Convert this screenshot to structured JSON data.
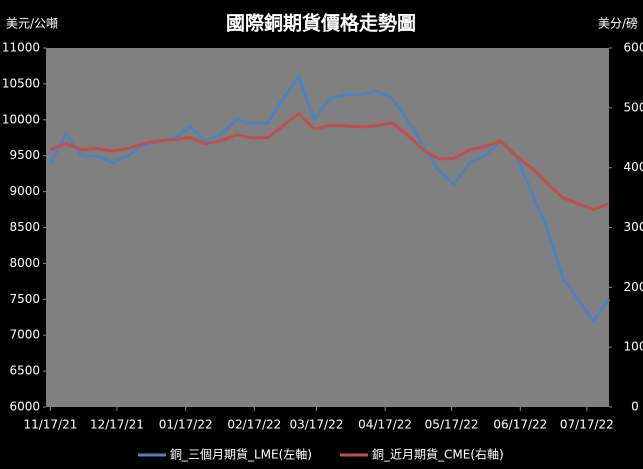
{
  "chart_data": {
    "type": "line",
    "title": "國際銅期貨價格走勢圖",
    "y_label": "美元/公噸",
    "y2_label": "美分/磅",
    "x": [
      "2021-11-17",
      "2021-11-24",
      "2021-12-01",
      "2021-12-08",
      "2021-12-15",
      "2021-12-22",
      "2021-12-29",
      "2022-01-05",
      "2022-01-12",
      "2022-01-19",
      "2022-01-26",
      "2022-02-02",
      "2022-02-09",
      "2022-02-16",
      "2022-02-23",
      "2022-03-02",
      "2022-03-09",
      "2022-03-16",
      "2022-03-23",
      "2022-03-30",
      "2022-04-06",
      "2022-04-13",
      "2022-04-20",
      "2022-04-27",
      "2022-05-04",
      "2022-05-11",
      "2022-05-18",
      "2022-05-25",
      "2022-06-01",
      "2022-06-08",
      "2022-06-15",
      "2022-06-22",
      "2022-06-29",
      "2022-07-06",
      "2022-07-13",
      "2022-07-20",
      "2022-07-27"
    ],
    "series": [
      {
        "name": "銅_三個月期貨_LME(左軸)",
        "color": "#4f81bd",
        "axis": "y",
        "values": [
          9400,
          9800,
          9500,
          9500,
          9400,
          9500,
          9650,
          9700,
          9750,
          9900,
          9700,
          9800,
          10000,
          9950,
          9950,
          10300,
          10600,
          10000,
          10300,
          10350,
          10350,
          10400,
          10300,
          10000,
          9650,
          9300,
          9100,
          9400,
          9500,
          9700,
          9500,
          9000,
          8500,
          7800,
          7500,
          7200,
          7500
        ]
      },
      {
        "name": "銅_近月期貨_CME(右軸)",
        "color": "#c0504d",
        "axis": "y2",
        "values": [
          430,
          440,
          430,
          432,
          428,
          432,
          440,
          445,
          447,
          450,
          440,
          445,
          455,
          450,
          450,
          470,
          490,
          465,
          470,
          470,
          468,
          470,
          475,
          455,
          430,
          415,
          415,
          430,
          435,
          445,
          420,
          400,
          375,
          350,
          340,
          330,
          340
        ]
      }
    ],
    "xlim": [
      "2021-11-15",
      "2022-07-27"
    ],
    "xticks": [
      {
        "value": "2021-11-17",
        "label": "11/17/21"
      },
      {
        "value": "2021-12-17",
        "label": "12/17/21"
      },
      {
        "value": "2022-01-17",
        "label": "01/17/22"
      },
      {
        "value": "2022-02-17",
        "label": "02/17/22"
      },
      {
        "value": "2022-03-17",
        "label": "03/17/22"
      },
      {
        "value": "2022-04-17",
        "label": "04/17/22"
      },
      {
        "value": "2022-05-17",
        "label": "05/17/22"
      },
      {
        "value": "2022-06-17",
        "label": "06/17/22"
      },
      {
        "value": "2022-07-17",
        "label": "07/17/22"
      }
    ],
    "ylim": [
      6000,
      11000
    ],
    "yticks": [
      6000,
      6500,
      7000,
      7500,
      8000,
      8500,
      9000,
      9500,
      10000,
      10500,
      11000
    ],
    "y2lim": [
      0,
      600
    ],
    "y2ticks": [
      0,
      100,
      200,
      300,
      400,
      500,
      600
    ]
  }
}
